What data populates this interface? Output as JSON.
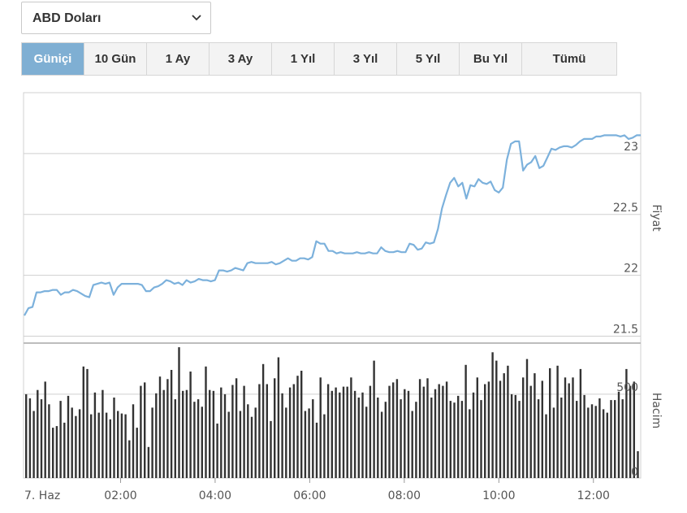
{
  "currency_select": {
    "value": "ABD Doları"
  },
  "tabs": [
    {
      "label": "Güniçi",
      "active": true
    },
    {
      "label": "10 Gün",
      "active": false
    },
    {
      "label": "1 Ay",
      "active": false
    },
    {
      "label": "3 Ay",
      "active": false
    },
    {
      "label": "1 Yıl",
      "active": false
    },
    {
      "label": "3 Yıl",
      "active": false
    },
    {
      "label": "5 Yıl",
      "active": false
    },
    {
      "label": "Bu Yıl",
      "active": false
    },
    {
      "label": "Tümü",
      "active": false
    }
  ],
  "colors": {
    "price_line": "#7cb1dc",
    "volume_bar": "#333333",
    "active_tab": "#7fafd3",
    "grid": "#cfcfcf"
  },
  "chart_data": [
    {
      "type": "line",
      "ylabel": "Fiyat",
      "ylim": [
        21.45,
        23.5
      ],
      "yticks": [
        "21.5",
        "22",
        "22.5",
        "23"
      ],
      "xlim": [
        0,
        13.0
      ],
      "x_ticks": [
        "7. Haz",
        "02:00",
        "04:00",
        "06:00",
        "08:00",
        "10:00",
        "12:00"
      ],
      "x_tick_hours": [
        0,
        2,
        4,
        6,
        8,
        10,
        12
      ],
      "series": [
        {
          "values": [
            21.67,
            21.73,
            21.74,
            21.86,
            21.86,
            21.87,
            21.87,
            21.88,
            21.88,
            21.84,
            21.86,
            21.86,
            21.88,
            21.87,
            21.85,
            21.83,
            21.82,
            21.92,
            21.93,
            21.94,
            21.93,
            21.94,
            21.84,
            21.9,
            21.93,
            21.93,
            21.93,
            21.93,
            21.93,
            21.92,
            21.87,
            21.87,
            21.9,
            21.91,
            21.93,
            21.96,
            21.95,
            21.93,
            21.94,
            21.92,
            21.96,
            21.94,
            21.95,
            21.97,
            21.96,
            21.96,
            21.95,
            21.96,
            22.04,
            22.04,
            22.03,
            22.04,
            22.06,
            22.05,
            22.04,
            22.1,
            22.11,
            22.1,
            22.1,
            22.1,
            22.1,
            22.11,
            22.09,
            22.1,
            22.12,
            22.14,
            22.12,
            22.12,
            22.14,
            22.14,
            22.13,
            22.15,
            22.28,
            22.26,
            22.26,
            22.2,
            22.2,
            22.18,
            22.19,
            22.18,
            22.18,
            22.18,
            22.19,
            22.18,
            22.18,
            22.19,
            22.18,
            22.18,
            22.23,
            22.2,
            22.19,
            22.19,
            22.2,
            22.19,
            22.19,
            22.26,
            22.25,
            22.21,
            22.22,
            22.27,
            22.26,
            22.27,
            22.38,
            22.55,
            22.66,
            22.76,
            22.8,
            22.73,
            22.76,
            22.63,
            22.74,
            22.73,
            22.79,
            22.76,
            22.75,
            22.77,
            22.7,
            22.68,
            22.72,
            22.95,
            23.08,
            23.1,
            23.1,
            22.86,
            22.91,
            22.93,
            22.98,
            22.88,
            22.9,
            22.97,
            23.04,
            23.03,
            23.05,
            23.06,
            23.06,
            23.05,
            23.07,
            23.1,
            23.12,
            23.12,
            23.12,
            23.14,
            23.14,
            23.15,
            23.15,
            23.15,
            23.15,
            23.14,
            23.15,
            23.12,
            23.13,
            23.15,
            23.15
          ]
        }
      ]
    },
    {
      "type": "bar",
      "ylabel": "Hacim",
      "ylim": [
        0,
        800
      ],
      "yticks": [
        "0",
        "500"
      ],
      "series": [
        {
          "values": [
            500,
            475,
            400,
            525,
            470,
            575,
            440,
            300,
            310,
            460,
            330,
            490,
            420,
            370,
            410,
            665,
            650,
            380,
            510,
            390,
            525,
            390,
            350,
            480,
            400,
            385,
            380,
            225,
            440,
            300,
            550,
            570,
            185,
            420,
            505,
            605,
            525,
            590,
            645,
            470,
            780,
            520,
            525,
            635,
            455,
            470,
            425,
            665,
            525,
            520,
            325,
            540,
            500,
            395,
            555,
            595,
            400,
            550,
            440,
            365,
            420,
            560,
            680,
            560,
            340,
            595,
            720,
            505,
            420,
            540,
            560,
            610,
            640,
            400,
            415,
            470,
            330,
            600,
            380,
            560,
            520,
            540,
            510,
            545,
            545,
            600,
            520,
            480,
            510,
            425,
            550,
            700,
            480,
            395,
            455,
            550,
            570,
            590,
            470,
            530,
            520,
            400,
            455,
            590,
            545,
            595,
            480,
            530,
            560,
            550,
            575,
            460,
            450,
            490,
            460,
            675,
            410,
            510,
            600,
            465,
            560,
            575,
            750,
            700,
            580,
            625,
            670,
            500,
            495,
            460,
            600,
            710,
            550,
            625,
            470,
            580,
            380,
            655,
            420,
            670,
            480,
            600,
            565,
            600,
            460,
            650,
            495,
            420,
            440,
            430,
            475,
            410,
            390,
            465,
            465,
            515,
            470,
            650,
            550,
            575,
            160
          ]
        }
      ]
    }
  ]
}
